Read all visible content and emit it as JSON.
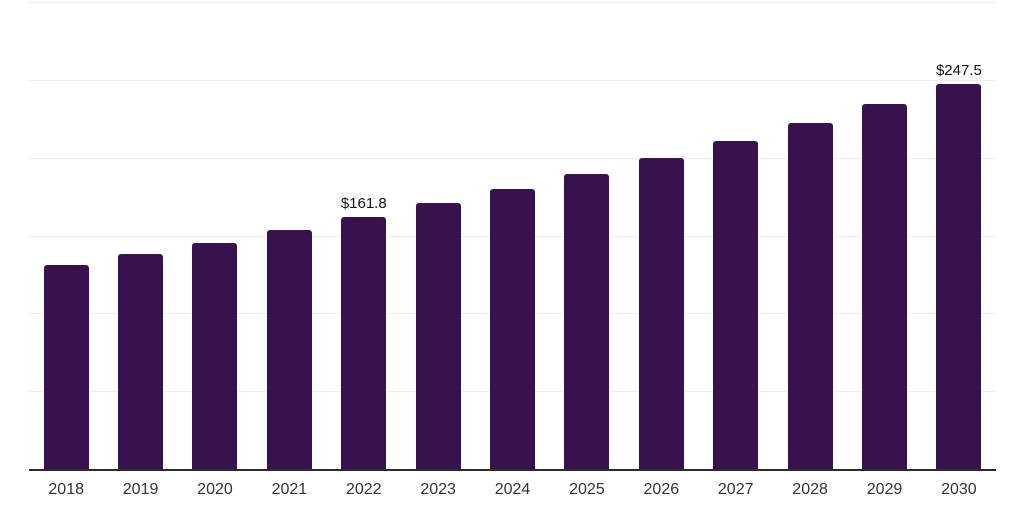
{
  "chart_data": {
    "type": "bar",
    "title": "",
    "xlabel": "",
    "ylabel": "",
    "categories": [
      "2018",
      "2019",
      "2020",
      "2021",
      "2022",
      "2023",
      "2024",
      "2025",
      "2026",
      "2027",
      "2028",
      "2029",
      "2030"
    ],
    "values": [
      130.9,
      138.0,
      145.5,
      153.5,
      161.8,
      170.6,
      179.9,
      189.7,
      200.1,
      211.0,
      222.5,
      234.6,
      247.5
    ],
    "data_labels": [
      "",
      "",
      "",
      "",
      "$161.8",
      "",
      "",
      "",
      "",
      "",
      "",
      "",
      "$247.5"
    ],
    "ylim": [
      0,
      300
    ],
    "gridline_step": 50,
    "grid": true,
    "legend": false,
    "y_tick_labels_visible": false,
    "colors": {
      "bar": "#37124e",
      "gridline": "#ededed",
      "axis_line": "#2b2b2b",
      "tick_label": "#333333",
      "value_label": "#111111",
      "background": "#ffffff"
    }
  }
}
